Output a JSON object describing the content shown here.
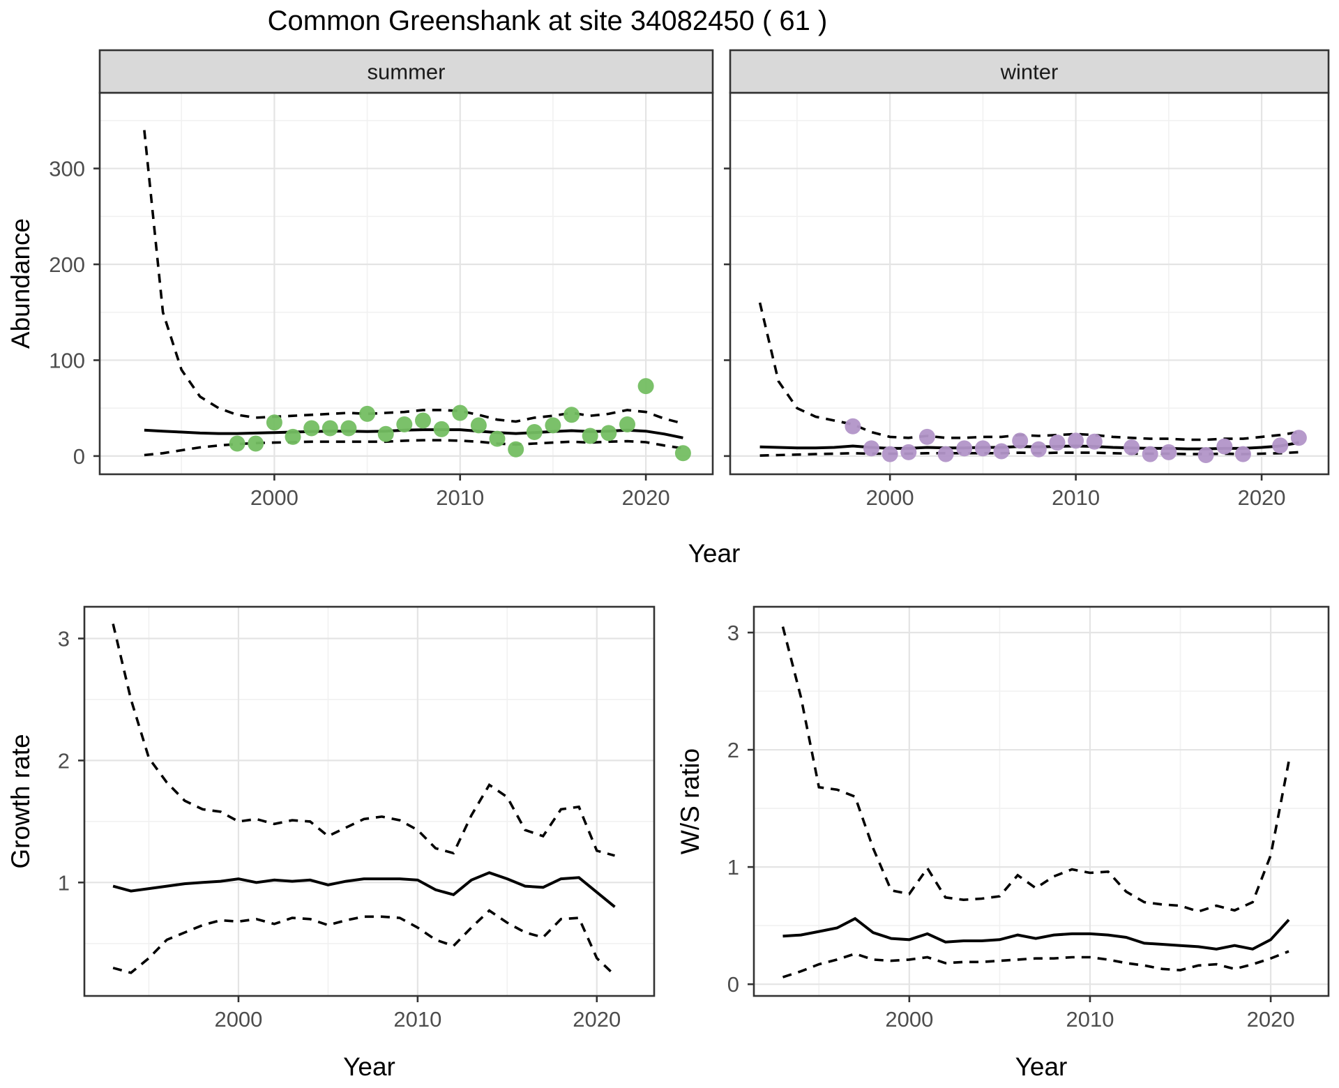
{
  "title": "Common Greenshank at site 34082450 ( 61 )",
  "colors": {
    "summer_point": "#74BE62",
    "winter_point": "#B295C8",
    "fit_line": "#000000",
    "ci_line": "#000000",
    "strip_fill": "#D9D9D9",
    "panel_border": "#333333",
    "grid_major": "#E4E4E4",
    "grid_minor": "#F1F1F1",
    "tick_label": "#4D4D4D",
    "axis_title": "#000000"
  },
  "top_row": {
    "xlabel": "Year",
    "ylabel": "Abundance"
  },
  "chart_data": [
    {
      "id": "abundance_summer",
      "type": "scatter",
      "facet_label": "summer",
      "xlabel": "Year",
      "ylabel": "Abundance",
      "x_ticks": [
        2000,
        2010,
        2020
      ],
      "y_ticks": [
        0,
        100,
        200,
        300
      ],
      "xlim": [
        1990.6,
        2023.6
      ],
      "ylim": [
        -19,
        379
      ],
      "points": {
        "years": [
          1998,
          1999,
          2000,
          2001,
          2002,
          2003,
          2004,
          2005,
          2006,
          2007,
          2008,
          2009,
          2010,
          2011,
          2012,
          2013,
          2014,
          2015,
          2016,
          2017,
          2018,
          2019,
          2020,
          2022
        ],
        "values": [
          13,
          13,
          35,
          20,
          29,
          29,
          29,
          44,
          23,
          33,
          37,
          28,
          45,
          32,
          18,
          7,
          25,
          32,
          43,
          21,
          24,
          33,
          73,
          3
        ]
      },
      "fit": {
        "years": [
          1993,
          1994,
          1995,
          1996,
          1997,
          1998,
          1999,
          2000,
          2001,
          2002,
          2003,
          2004,
          2005,
          2006,
          2007,
          2008,
          2009,
          2010,
          2011,
          2012,
          2013,
          2014,
          2015,
          2016,
          2017,
          2018,
          2019,
          2020,
          2021,
          2022
        ],
        "mean": [
          27,
          26,
          25,
          24,
          23.5,
          23.5,
          24,
          24.5,
          25,
          25.5,
          26,
          26,
          25.5,
          26,
          27,
          27.5,
          27.5,
          27.5,
          26,
          24.5,
          23.5,
          24.5,
          25.5,
          26.5,
          25.5,
          26,
          27,
          26,
          23,
          19
        ],
        "upper": [
          340,
          150,
          90,
          62,
          50,
          43,
          40,
          41,
          42,
          43,
          44,
          45,
          44,
          45,
          46,
          48,
          48,
          47,
          43,
          38,
          36,
          40,
          42,
          45,
          42,
          44,
          48,
          46,
          39,
          34
        ],
        "lower": [
          1,
          3,
          6,
          9,
          11,
          12.5,
          13.5,
          14,
          14.5,
          15,
          15,
          15,
          15,
          15,
          16,
          16.5,
          16.5,
          16,
          15,
          13,
          12,
          13,
          14,
          15,
          14,
          15,
          15.5,
          14.5,
          11,
          8
        ]
      }
    },
    {
      "id": "abundance_winter",
      "type": "scatter",
      "facet_label": "winter",
      "xlabel": "Year",
      "ylabel": "Abundance",
      "x_ticks": [
        2000,
        2010,
        2020
      ],
      "y_ticks": [
        0,
        100,
        200,
        300
      ],
      "xlim": [
        1991.4,
        2023.6
      ],
      "ylim": [
        -19,
        379
      ],
      "points": {
        "years": [
          1998,
          1999,
          2000,
          2001,
          2002,
          2003,
          2004,
          2005,
          2006,
          2007,
          2008,
          2009,
          2010,
          2011,
          2013,
          2014,
          2015,
          2017,
          2018,
          2019,
          2021,
          2022
        ],
        "values": [
          31,
          8,
          2,
          4,
          20,
          2,
          8,
          8,
          5,
          16,
          7,
          14,
          16,
          15,
          9,
          2,
          4,
          1,
          10,
          2,
          11,
          19
        ]
      },
      "fit": {
        "years": [
          1993,
          1994,
          1995,
          1996,
          1997,
          1998,
          1999,
          2000,
          2001,
          2002,
          2003,
          2004,
          2005,
          2006,
          2007,
          2008,
          2009,
          2010,
          2011,
          2012,
          2013,
          2014,
          2015,
          2016,
          2017,
          2018,
          2019,
          2020,
          2021,
          2022
        ],
        "mean": [
          9.5,
          9,
          8.5,
          8.5,
          9,
          10.5,
          9,
          8,
          8,
          9,
          8.5,
          8.5,
          9,
          9,
          10,
          9.5,
          10,
          10.5,
          10,
          9,
          8.5,
          8,
          8,
          7.5,
          7.5,
          8,
          8,
          9,
          10.5,
          14
        ],
        "upper": [
          160,
          78,
          50,
          41,
          37,
          33,
          25,
          20,
          19,
          21,
          19,
          19,
          20,
          20,
          22,
          21,
          22,
          23,
          22,
          20,
          19,
          18,
          18,
          17,
          17,
          18,
          18,
          20,
          22,
          25
        ],
        "lower": [
          0.5,
          1,
          1.5,
          2,
          2.5,
          3,
          2.5,
          2.5,
          2.5,
          3,
          3,
          3,
          3,
          3,
          3.5,
          3,
          3.5,
          3.5,
          3.5,
          3,
          2.5,
          2.5,
          2.5,
          2,
          2,
          2.5,
          2,
          2.5,
          3,
          4
        ]
      }
    },
    {
      "id": "growth_rate",
      "type": "line",
      "facet_label": "",
      "xlabel": "Year",
      "ylabel": "Growth rate",
      "x_ticks": [
        2000,
        2010,
        2020
      ],
      "y_ticks": [
        1,
        2,
        3
      ],
      "xlim": [
        1991.4,
        2023.2
      ],
      "ylim": [
        0.07,
        3.26
      ],
      "points": {
        "years": [],
        "values": []
      },
      "fit": {
        "years": [
          1993,
          1994,
          1995,
          1996,
          1997,
          1998,
          1999,
          2000,
          2001,
          2002,
          2003,
          2004,
          2005,
          2006,
          2007,
          2008,
          2009,
          2010,
          2011,
          2012,
          2013,
          2014,
          2015,
          2016,
          2017,
          2018,
          2019,
          2020,
          2021
        ],
        "mean": [
          0.97,
          0.93,
          0.95,
          0.97,
          0.99,
          1.0,
          1.01,
          1.03,
          1.0,
          1.02,
          1.01,
          1.02,
          0.98,
          1.01,
          1.03,
          1.03,
          1.03,
          1.02,
          0.94,
          0.9,
          1.02,
          1.08,
          1.03,
          0.97,
          0.96,
          1.03,
          1.04,
          0.92,
          0.8
        ],
        "upper": [
          3.12,
          2.5,
          2.02,
          1.82,
          1.67,
          1.6,
          1.58,
          1.5,
          1.52,
          1.48,
          1.51,
          1.5,
          1.38,
          1.45,
          1.52,
          1.54,
          1.51,
          1.43,
          1.28,
          1.24,
          1.55,
          1.8,
          1.7,
          1.43,
          1.38,
          1.6,
          1.62,
          1.26,
          1.22
        ],
        "lower": [
          0.3,
          0.26,
          0.38,
          0.53,
          0.59,
          0.65,
          0.69,
          0.68,
          0.7,
          0.66,
          0.71,
          0.7,
          0.65,
          0.69,
          0.72,
          0.72,
          0.71,
          0.63,
          0.53,
          0.48,
          0.63,
          0.77,
          0.67,
          0.59,
          0.55,
          0.7,
          0.71,
          0.38,
          0.24
        ]
      }
    },
    {
      "id": "ws_ratio",
      "type": "line",
      "facet_label": "",
      "xlabel": "Year",
      "ylabel": "W/S ratio",
      "x_ticks": [
        2000,
        2010,
        2020
      ],
      "y_ticks": [
        0,
        1,
        2,
        3
      ],
      "xlim": [
        1991.4,
        2023.2
      ],
      "ylim": [
        -0.1,
        3.22
      ],
      "points": {
        "years": [],
        "values": []
      },
      "fit": {
        "years": [
          1993,
          1994,
          1995,
          1996,
          1997,
          1998,
          1999,
          2000,
          2001,
          2002,
          2003,
          2004,
          2005,
          2006,
          2007,
          2008,
          2009,
          2010,
          2011,
          2012,
          2013,
          2014,
          2015,
          2016,
          2017,
          2018,
          2019,
          2020,
          2021
        ],
        "mean": [
          0.41,
          0.42,
          0.45,
          0.48,
          0.56,
          0.44,
          0.39,
          0.38,
          0.43,
          0.36,
          0.37,
          0.37,
          0.38,
          0.42,
          0.39,
          0.42,
          0.43,
          0.43,
          0.42,
          0.4,
          0.35,
          0.34,
          0.33,
          0.32,
          0.3,
          0.33,
          0.3,
          0.38,
          0.55
        ],
        "upper": [
          3.05,
          2.45,
          1.68,
          1.66,
          1.6,
          1.16,
          0.8,
          0.77,
          0.99,
          0.74,
          0.72,
          0.73,
          0.75,
          0.93,
          0.82,
          0.92,
          0.98,
          0.95,
          0.96,
          0.79,
          0.7,
          0.68,
          0.67,
          0.62,
          0.67,
          0.63,
          0.7,
          1.1,
          1.9
        ],
        "lower": [
          0.06,
          0.11,
          0.17,
          0.21,
          0.26,
          0.21,
          0.2,
          0.21,
          0.23,
          0.18,
          0.19,
          0.19,
          0.2,
          0.21,
          0.22,
          0.22,
          0.23,
          0.23,
          0.21,
          0.18,
          0.16,
          0.13,
          0.12,
          0.16,
          0.17,
          0.13,
          0.17,
          0.22,
          0.28
        ]
      }
    }
  ]
}
